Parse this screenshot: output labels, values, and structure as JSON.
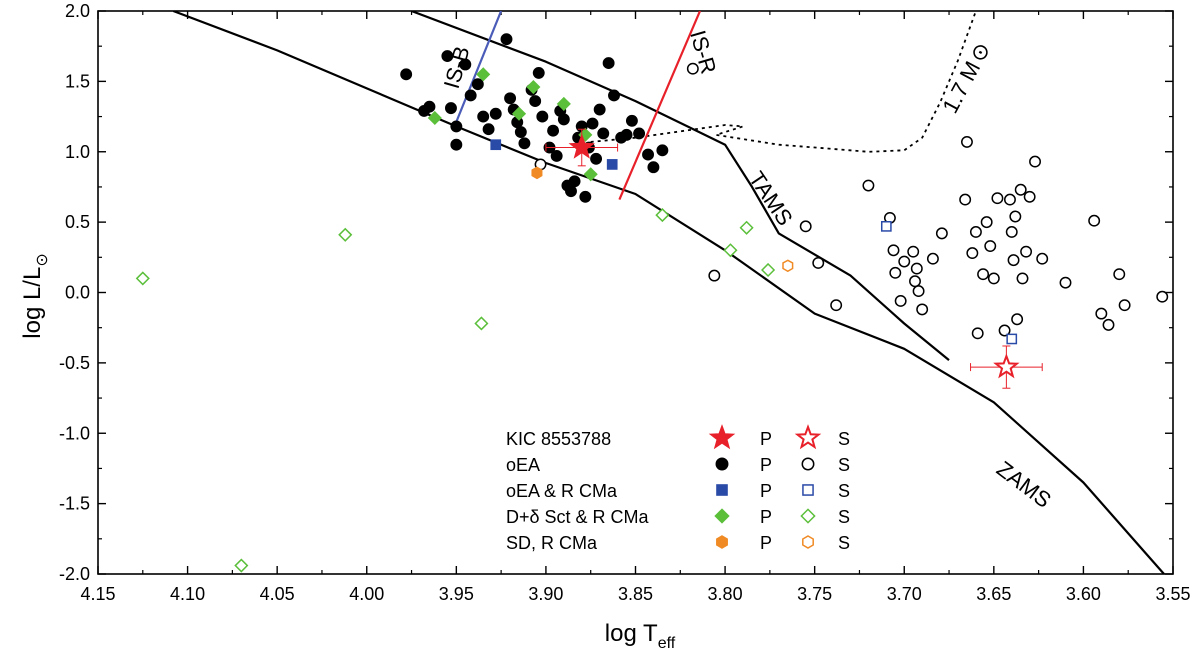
{
  "chart_data": {
    "type": "scatter",
    "title": "",
    "xlabel": "log T",
    "xlabel_sub": "eff",
    "ylabel": "log L/L",
    "ylabel_sub": "⊙",
    "xlim": [
      4.15,
      3.55
    ],
    "ylim": [
      -2.0,
      2.0
    ],
    "x_ticks": [
      "4.15",
      "4.10",
      "4.05",
      "4.00",
      "3.95",
      "3.90",
      "3.85",
      "3.80",
      "3.75",
      "3.70",
      "3.65",
      "3.60",
      "3.55"
    ],
    "y_ticks": [
      "2.0",
      "1.5",
      "1.0",
      "0.5",
      "0.0",
      "-0.5",
      "-1.0",
      "-1.5",
      "-2.0"
    ],
    "colors": {
      "kic": "#e8202a",
      "oea": "#000000",
      "rcma": "#2a4aa8",
      "dsct": "#5bbf3a",
      "sd": "#f08a24",
      "isb": "#4a5cb8",
      "isr": "#e8202a"
    },
    "curves": [
      {
        "name": "ZAMS",
        "label": "ZAMS",
        "style": "solid",
        "color": "#000000",
        "x": [
          4.108,
          4.05,
          4.0,
          3.95,
          3.9,
          3.85,
          3.8,
          3.75,
          3.7,
          3.65,
          3.6,
          3.555
        ],
        "y": [
          2.0,
          1.72,
          1.45,
          1.18,
          0.92,
          0.7,
          0.3,
          -0.15,
          -0.4,
          -0.78,
          -1.35,
          -2.0
        ]
      },
      {
        "name": "TAMS",
        "label": "TAMS",
        "style": "solid",
        "color": "#000000",
        "x": [
          3.975,
          3.9,
          3.85,
          3.8,
          3.785,
          3.77,
          3.73,
          3.7,
          3.675
        ],
        "y": [
          2.0,
          1.64,
          1.36,
          1.05,
          0.75,
          0.42,
          0.12,
          -0.22,
          -0.48
        ]
      },
      {
        "name": "1.7 Msun track",
        "label": "1.7 M",
        "label_sub": "⊙",
        "style": "dotted",
        "color": "#000000",
        "x": [
          3.875,
          3.85,
          3.8,
          3.79,
          3.805,
          3.79,
          3.77,
          3.74,
          3.72,
          3.7,
          3.69,
          3.68,
          3.67,
          3.66
        ],
        "y": [
          1.07,
          1.1,
          1.19,
          1.18,
          1.12,
          1.09,
          1.05,
          1.02,
          1.0,
          1.01,
          1.1,
          1.35,
          1.65,
          2.0
        ]
      },
      {
        "name": "IS-B",
        "label": "IS-B",
        "style": "solid",
        "color": "#4a5cb8",
        "x": [
          3.951,
          3.925
        ],
        "y": [
          1.18,
          2.0
        ]
      },
      {
        "name": "IS-R",
        "label": "IS-R",
        "style": "solid",
        "color": "#e8202a",
        "x": [
          3.859,
          3.814
        ],
        "y": [
          0.66,
          2.0
        ]
      }
    ],
    "series": [
      {
        "name": "oEA P",
        "marker": "circle",
        "filled": true,
        "color": "#000000",
        "points": [
          [
            3.978,
            1.55
          ],
          [
            3.968,
            1.29
          ],
          [
            3.965,
            1.32
          ],
          [
            3.955,
            1.68
          ],
          [
            3.953,
            1.31
          ],
          [
            3.95,
            1.18
          ],
          [
            3.95,
            1.05
          ],
          [
            3.945,
            1.62
          ],
          [
            3.942,
            1.4
          ],
          [
            3.938,
            1.48
          ],
          [
            3.935,
            1.25
          ],
          [
            3.932,
            1.16
          ],
          [
            3.928,
            1.27
          ],
          [
            3.922,
            1.8
          ],
          [
            3.92,
            1.38
          ],
          [
            3.918,
            1.3
          ],
          [
            3.916,
            1.21
          ],
          [
            3.914,
            1.14
          ],
          [
            3.912,
            1.06
          ],
          [
            3.908,
            1.44
          ],
          [
            3.906,
            1.36
          ],
          [
            3.904,
            1.56
          ],
          [
            3.902,
            1.25
          ],
          [
            3.898,
            1.03
          ],
          [
            3.896,
            1.15
          ],
          [
            3.894,
            0.97
          ],
          [
            3.892,
            1.29
          ],
          [
            3.89,
            1.23
          ],
          [
            3.888,
            0.76
          ],
          [
            3.886,
            0.72
          ],
          [
            3.882,
            1.1
          ],
          [
            3.88,
            1.18
          ],
          [
            3.876,
            1.03
          ],
          [
            3.874,
            1.2
          ],
          [
            3.872,
            0.95
          ],
          [
            3.87,
            1.3
          ],
          [
            3.868,
            1.13
          ],
          [
            3.865,
            1.63
          ],
          [
            3.862,
            1.4
          ],
          [
            3.858,
            1.1
          ],
          [
            3.855,
            1.12
          ],
          [
            3.852,
            1.22
          ],
          [
            3.848,
            1.13
          ],
          [
            3.843,
            0.98
          ],
          [
            3.84,
            0.89
          ],
          [
            3.835,
            1.01
          ],
          [
            3.878,
            0.68
          ],
          [
            3.884,
            0.79
          ]
        ]
      },
      {
        "name": "oEA S",
        "marker": "circle",
        "filled": false,
        "color": "#000000",
        "points": [
          [
            3.818,
            1.59
          ],
          [
            3.903,
            0.91
          ],
          [
            3.806,
            0.12
          ],
          [
            3.755,
            0.47
          ],
          [
            3.748,
            0.21
          ],
          [
            3.738,
            -0.09
          ],
          [
            3.72,
            0.76
          ],
          [
            3.708,
            0.53
          ],
          [
            3.706,
            0.3
          ],
          [
            3.705,
            0.14
          ],
          [
            3.702,
            -0.06
          ],
          [
            3.7,
            0.22
          ],
          [
            3.695,
            0.29
          ],
          [
            3.694,
            0.08
          ],
          [
            3.693,
            0.17
          ],
          [
            3.692,
            0.01
          ],
          [
            3.69,
            -0.12
          ],
          [
            3.684,
            0.24
          ],
          [
            3.679,
            0.42
          ],
          [
            3.666,
            0.66
          ],
          [
            3.665,
            1.07
          ],
          [
            3.662,
            0.28
          ],
          [
            3.66,
            0.43
          ],
          [
            3.659,
            -0.29
          ],
          [
            3.656,
            0.13
          ],
          [
            3.654,
            0.5
          ],
          [
            3.652,
            0.33
          ],
          [
            3.65,
            0.1
          ],
          [
            3.648,
            0.67
          ],
          [
            3.644,
            -0.27
          ],
          [
            3.641,
            0.66
          ],
          [
            3.64,
            0.43
          ],
          [
            3.639,
            0.23
          ],
          [
            3.638,
            0.54
          ],
          [
            3.637,
            -0.19
          ],
          [
            3.635,
            0.73
          ],
          [
            3.634,
            0.1
          ],
          [
            3.632,
            0.29
          ],
          [
            3.63,
            0.68
          ],
          [
            3.627,
            0.93
          ],
          [
            3.623,
            0.24
          ],
          [
            3.61,
            0.07
          ],
          [
            3.594,
            0.51
          ],
          [
            3.59,
            -0.15
          ],
          [
            3.586,
            -0.23
          ],
          [
            3.58,
            0.13
          ],
          [
            3.577,
            -0.09
          ],
          [
            3.556,
            -0.03
          ]
        ]
      },
      {
        "name": "oEA & R CMa P",
        "marker": "square",
        "filled": true,
        "color": "#2a4aa8",
        "points": [
          [
            3.928,
            1.05
          ],
          [
            3.863,
            0.91
          ]
        ]
      },
      {
        "name": "oEA & R CMa S",
        "marker": "square",
        "filled": false,
        "color": "#2a4aa8",
        "points": [
          [
            3.71,
            0.47
          ],
          [
            3.64,
            -0.33
          ]
        ]
      },
      {
        "name": "D+δ Sct & R CMa P",
        "marker": "diamond",
        "filled": true,
        "color": "#5bbf3a",
        "points": [
          [
            3.962,
            1.24
          ],
          [
            3.935,
            1.55
          ],
          [
            3.915,
            1.27
          ],
          [
            3.907,
            1.46
          ],
          [
            3.89,
            1.34
          ],
          [
            3.878,
            1.12
          ],
          [
            3.875,
            0.84
          ]
        ]
      },
      {
        "name": "D+δ Sct & R CMa S",
        "marker": "diamond",
        "filled": false,
        "color": "#5bbf3a",
        "points": [
          [
            4.125,
            0.1
          ],
          [
            4.07,
            -1.94
          ],
          [
            4.012,
            0.41
          ],
          [
            3.936,
            -0.22
          ],
          [
            3.835,
            0.55
          ],
          [
            3.797,
            0.3
          ],
          [
            3.788,
            0.46
          ],
          [
            3.776,
            0.16
          ]
        ]
      },
      {
        "name": "SD, R CMa P",
        "marker": "hexagon",
        "filled": true,
        "color": "#f08a24",
        "points": [
          [
            3.905,
            0.85
          ]
        ]
      },
      {
        "name": "SD, R CMa S",
        "marker": "hexagon",
        "filled": false,
        "color": "#f08a24",
        "points": [
          [
            3.765,
            0.19
          ]
        ]
      },
      {
        "name": "KIC 8553788 P",
        "marker": "star",
        "filled": true,
        "color": "#e8202a",
        "points": [
          [
            3.88,
            1.03
          ]
        ],
        "xerr": 0.02,
        "yerr": 0.13
      },
      {
        "name": "KIC 8553788 S",
        "marker": "star",
        "filled": false,
        "color": "#e8202a",
        "points": [
          [
            3.643,
            -0.53
          ]
        ],
        "xerr": 0.02,
        "yerr": 0.15
      }
    ],
    "legend": {
      "position": "bottom-center",
      "entries": [
        {
          "label": "KIC 8553788",
          "p_label": "P",
          "s_label": "S",
          "marker": "star",
          "color": "#e8202a"
        },
        {
          "label": "oEA",
          "p_label": "P",
          "s_label": "S",
          "marker": "circle",
          "color": "#000000"
        },
        {
          "label": "oEA & R CMa",
          "p_label": "P",
          "s_label": "S",
          "marker": "square",
          "color": "#2a4aa8"
        },
        {
          "label": "D+δ Sct & R CMa",
          "p_label": "P",
          "s_label": "S",
          "marker": "diamond",
          "color": "#5bbf3a"
        },
        {
          "label": "SD, R CMa",
          "p_label": "P",
          "s_label": "S",
          "marker": "hexagon",
          "color": "#f08a24"
        }
      ]
    }
  }
}
